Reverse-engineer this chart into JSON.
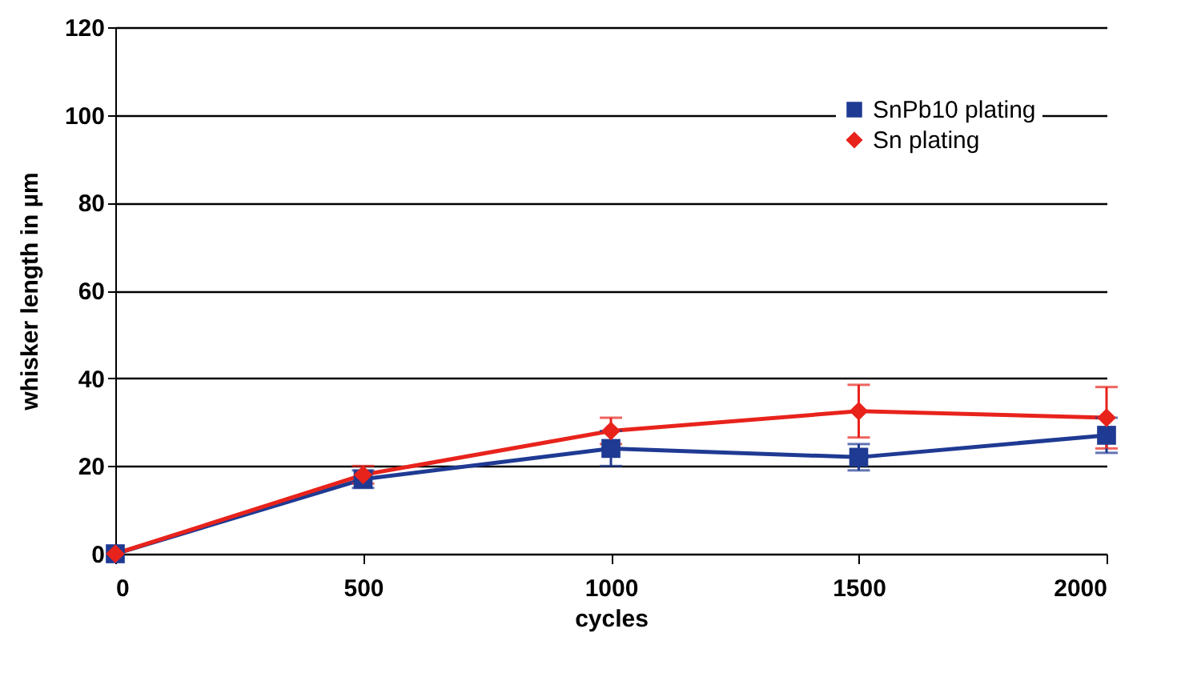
{
  "chart_data": {
    "type": "line",
    "xlabel": "cycles",
    "ylabel": "whisker length in µm",
    "x": [
      0,
      500,
      1000,
      1500,
      2000
    ],
    "series": [
      {
        "name": "SnPb10 plating",
        "color": "#1f3a93",
        "marker": "square",
        "values": [
          0,
          17,
          24,
          22,
          27
        ],
        "errors": [
          null,
          2,
          4,
          3,
          4
        ]
      },
      {
        "name": "Sn plating",
        "color": "#e8231c",
        "marker": "diamond",
        "values": [
          0,
          18,
          28,
          32.5,
          31
        ],
        "errors": [
          null,
          2,
          3,
          6,
          7
        ]
      }
    ],
    "xlim": [
      0,
      2000
    ],
    "xticks": [
      0,
      500,
      1000,
      1500,
      2000
    ],
    "ylim": [
      0,
      120
    ],
    "yticks": [
      0,
      20,
      40,
      60,
      80,
      100,
      120
    ],
    "grid": "y",
    "legend": "top right"
  }
}
